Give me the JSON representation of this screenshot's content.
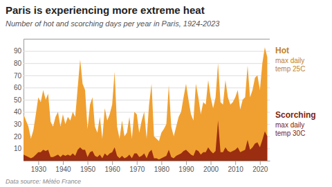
{
  "chart_data": {
    "type": "area",
    "title": "Paris is experiencing more extreme heat",
    "subtitle": "Number of hot and scorching days per year in Paris, 1924-2023",
    "source": "Data source: Météo France",
    "x": [
      1924,
      1925,
      1926,
      1927,
      1928,
      1929,
      1930,
      1931,
      1932,
      1933,
      1934,
      1935,
      1936,
      1937,
      1938,
      1939,
      1940,
      1941,
      1942,
      1943,
      1944,
      1945,
      1946,
      1947,
      1948,
      1949,
      1950,
      1951,
      1952,
      1953,
      1954,
      1955,
      1956,
      1957,
      1958,
      1959,
      1960,
      1961,
      1962,
      1963,
      1964,
      1965,
      1966,
      1967,
      1968,
      1969,
      1970,
      1971,
      1972,
      1973,
      1974,
      1975,
      1976,
      1977,
      1978,
      1979,
      1980,
      1981,
      1982,
      1983,
      1984,
      1985,
      1986,
      1987,
      1988,
      1989,
      1990,
      1991,
      1992,
      1993,
      1994,
      1995,
      1996,
      1997,
      1998,
      1999,
      2000,
      2001,
      2002,
      2003,
      2004,
      2005,
      2006,
      2007,
      2008,
      2009,
      2010,
      2011,
      2012,
      2013,
      2014,
      2015,
      2016,
      2017,
      2018,
      2019,
      2020,
      2021,
      2022,
      2023
    ],
    "series": [
      {
        "name": "Hot",
        "color": "#f0a030",
        "values": [
          38,
          33,
          28,
          18,
          25,
          38,
          52,
          48,
          58,
          50,
          55,
          32,
          28,
          36,
          40,
          28,
          38,
          30,
          36,
          33,
          40,
          36,
          60,
          83,
          63,
          58,
          26,
          46,
          52,
          28,
          23,
          36,
          18,
          43,
          33,
          38,
          46,
          73,
          28,
          18,
          33,
          20,
          23,
          36,
          18,
          40,
          38,
          23,
          33,
          40,
          18,
          46,
          63,
          20,
          18,
          16,
          23,
          26,
          30,
          62,
          28,
          20,
          28,
          36,
          40,
          52,
          63,
          50,
          38,
          33,
          63,
          52,
          38,
          48,
          46,
          66,
          52,
          43,
          52,
          80,
          48,
          46,
          66,
          52,
          46,
          48,
          52,
          58,
          42,
          50,
          52,
          78,
          52,
          58,
          68,
          70,
          58,
          80,
          93,
          85
        ]
      },
      {
        "name": "Scorching",
        "color": "#9b2d10",
        "values": [
          5,
          4,
          3,
          2,
          3,
          5,
          7,
          7,
          9,
          8,
          9,
          3,
          3,
          4,
          5,
          3,
          5,
          4,
          5,
          4,
          6,
          4,
          9,
          11,
          9,
          9,
          3,
          7,
          8,
          4,
          3,
          5,
          2,
          6,
          4,
          6,
          7,
          11,
          4,
          2,
          4,
          2,
          3,
          5,
          2,
          6,
          6,
          3,
          4,
          6,
          2,
          7,
          9,
          2,
          2,
          1,
          2,
          3,
          4,
          9,
          3,
          2,
          4,
          5,
          6,
          8,
          9,
          7,
          5,
          4,
          9,
          8,
          5,
          7,
          7,
          11,
          8,
          6,
          8,
          33,
          7,
          7,
          11,
          8,
          7,
          8,
          9,
          11,
          7,
          8,
          9,
          17,
          9,
          11,
          14,
          15,
          11,
          17,
          24,
          20
        ]
      }
    ],
    "annotations": [
      [
        "max daily",
        "temp 25C"
      ],
      [
        "max daily",
        "temp 30C"
      ]
    ],
    "xlim": [
      1924,
      2024
    ],
    "xticks": [
      1930,
      1940,
      1950,
      1960,
      1970,
      1980,
      1990,
      2000,
      2010,
      2020
    ],
    "ylim": [
      0,
      100
    ],
    "yticks": [
      10,
      20,
      30,
      40,
      50,
      60,
      70,
      80,
      90
    ],
    "grid": true
  }
}
